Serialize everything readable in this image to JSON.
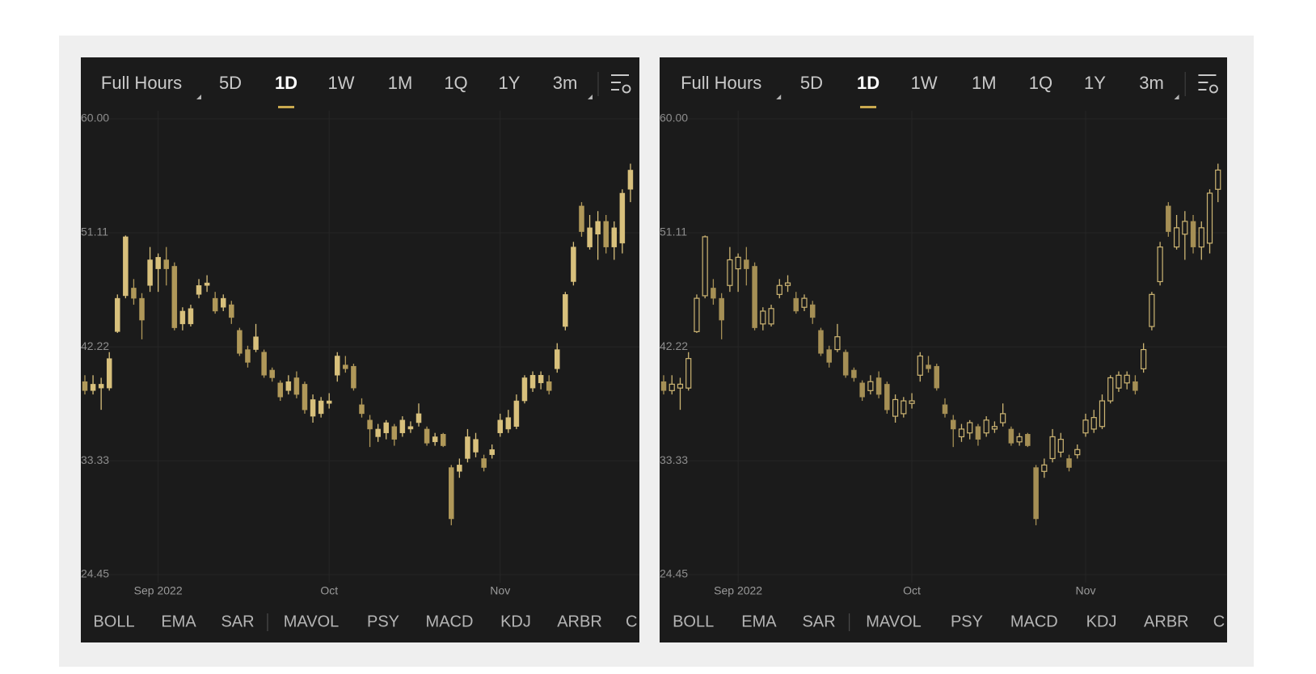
{
  "panels": [
    {
      "tabs": [
        "Full Hours",
        "5D",
        "1D",
        "1W",
        "1M",
        "1Q",
        "1Y",
        "3m"
      ],
      "indicators": [
        "BOLL",
        "EMA",
        "SAR",
        "MAVOL",
        "PSY",
        "MACD",
        "KDJ",
        "ARBR",
        "C"
      ]
    },
    {
      "tabs": [
        "Full Hours",
        "5D",
        "1D",
        "1W",
        "1M",
        "1Q",
        "1Y",
        "3m"
      ],
      "indicators": [
        "BOLL",
        "EMA",
        "SAR",
        "MAVOL",
        "PSY",
        "MACD",
        "KDJ",
        "ARBR",
        "C"
      ]
    }
  ],
  "chart_data": [
    {
      "type": "candlestick",
      "categories": [
        null,
        null,
        null,
        null,
        null,
        null,
        null,
        null,
        null,
        "Sep 2022",
        null,
        null,
        null,
        null,
        null,
        null,
        null,
        null,
        null,
        null,
        null,
        null,
        null,
        null,
        null,
        null,
        null,
        null,
        null,
        null,
        "Oct",
        null,
        null,
        null,
        null,
        null,
        null,
        null,
        null,
        null,
        null,
        null,
        null,
        null,
        null,
        null,
        null,
        null,
        null,
        null,
        null,
        "Nov",
        null,
        null,
        null,
        null,
        null,
        null,
        null,
        null,
        null,
        null,
        null,
        null,
        null,
        null,
        null,
        null
      ],
      "open": [
        39.5,
        38.8,
        39.0,
        39.0,
        43.4,
        46.2,
        46.8,
        46.0,
        47.0,
        48.3,
        49.0,
        48.5,
        44.0,
        44.0,
        46.3,
        47.0,
        46.0,
        45.3,
        45.5,
        43.5,
        42.0,
        42.0,
        41.8,
        40.4,
        39.4,
        38.8,
        39.8,
        39.3,
        36.8,
        37.0,
        37.8,
        40.0,
        40.8,
        40.7,
        37.7,
        36.5,
        35.2,
        35.5,
        36.0,
        35.5,
        35.8,
        36.3,
        35.8,
        34.8,
        35.4,
        32.8,
        32.5,
        33.5,
        34.0,
        33.5,
        33.8,
        35.5,
        35.8,
        36.0,
        38.0,
        39.0,
        39.4,
        39.5,
        40.5,
        43.8,
        47.3,
        53.2,
        50.0,
        51.0,
        52.0,
        50.0,
        50.3,
        54.5
      ],
      "high": [
        40.0,
        40.0,
        39.8,
        41.8,
        46.3,
        50.9,
        47.5,
        46.4,
        50.0,
        49.5,
        50.0,
        48.8,
        45.3,
        45.5,
        47.5,
        47.8,
        46.5,
        46.3,
        45.8,
        43.7,
        42.3,
        44.0,
        42.0,
        40.6,
        39.6,
        40.0,
        40.3,
        39.5,
        38.5,
        38.3,
        38.6,
        41.8,
        41.5,
        40.9,
        38.2,
        36.9,
        36.2,
        36.5,
        36.2,
        36.8,
        36.4,
        37.8,
        36.0,
        35.5,
        35.5,
        33.0,
        33.5,
        35.8,
        35.5,
        33.8,
        34.6,
        37.0,
        37.3,
        38.5,
        40.0,
        40.3,
        40.3,
        40.0,
        42.5,
        46.5,
        50.4,
        53.5,
        52.5,
        52.8,
        52.5,
        52.0,
        54.5,
        56.5
      ],
      "low": [
        38.5,
        38.5,
        37.3,
        38.8,
        43.3,
        46.0,
        45.5,
        42.8,
        46.5,
        46.5,
        47.0,
        43.5,
        43.5,
        43.8,
        46.0,
        46.5,
        44.8,
        45.0,
        44.0,
        41.5,
        40.6,
        41.8,
        39.8,
        39.5,
        38.0,
        38.5,
        38.2,
        37.0,
        36.3,
        36.7,
        37.4,
        39.5,
        40.2,
        38.8,
        36.7,
        34.4,
        34.8,
        35.0,
        34.5,
        35.2,
        35.5,
        36.0,
        34.5,
        34.5,
        34.4,
        28.3,
        32.0,
        33.2,
        33.6,
        32.5,
        33.5,
        35.2,
        35.5,
        35.8,
        37.8,
        38.7,
        38.9,
        38.5,
        40.2,
        43.5,
        47.0,
        50.8,
        49.8,
        49.0,
        49.5,
        49.0,
        49.5,
        53.5
      ],
      "close": [
        38.8,
        39.3,
        39.3,
        41.3,
        46.0,
        50.8,
        46.0,
        44.3,
        49.0,
        49.2,
        48.3,
        43.7,
        45.0,
        45.2,
        47.0,
        47.2,
        45.0,
        46.0,
        44.5,
        41.7,
        41.0,
        43.0,
        40.0,
        39.8,
        38.3,
        39.5,
        38.5,
        37.3,
        38.1,
        38.0,
        38.0,
        41.5,
        40.5,
        39.0,
        37.0,
        35.8,
        35.8,
        36.3,
        35.0,
        36.5,
        36.0,
        37.0,
        34.7,
        35.2,
        34.5,
        28.8,
        33.0,
        35.2,
        35.0,
        32.8,
        34.2,
        36.5,
        36.7,
        38.0,
        39.8,
        40.0,
        40.0,
        38.8,
        42.0,
        46.3,
        50.0,
        51.2,
        51.5,
        52.0,
        50.0,
        51.5,
        54.2,
        56.0
      ],
      "ylim": [
        24.45,
        60
      ],
      "yticks": [
        24.45,
        33.33,
        42.22,
        51.11,
        {
          "value": 60,
          "label": "60.00"
        }
      ],
      "up_color": "#d8c07c",
      "down_color": "#b09859",
      "hollow_up": false,
      "grid": true
    },
    {
      "type": "candlestick",
      "categories": [
        null,
        null,
        null,
        null,
        null,
        null,
        null,
        null,
        null,
        "Sep 2022",
        null,
        null,
        null,
        null,
        null,
        null,
        null,
        null,
        null,
        null,
        null,
        null,
        null,
        null,
        null,
        null,
        null,
        null,
        null,
        null,
        "Oct",
        null,
        null,
        null,
        null,
        null,
        null,
        null,
        null,
        null,
        null,
        null,
        null,
        null,
        null,
        null,
        null,
        null,
        null,
        null,
        null,
        "Nov",
        null,
        null,
        null,
        null,
        null,
        null,
        null,
        null,
        null,
        null,
        null,
        null,
        null,
        null,
        null,
        null
      ],
      "open": [
        39.5,
        38.8,
        39.0,
        39.0,
        43.4,
        46.2,
        46.8,
        46.0,
        47.0,
        48.3,
        49.0,
        48.5,
        44.0,
        44.0,
        46.3,
        47.0,
        46.0,
        45.3,
        45.5,
        43.5,
        42.0,
        42.0,
        41.8,
        40.4,
        39.4,
        38.8,
        39.8,
        39.3,
        36.8,
        37.0,
        37.8,
        40.0,
        40.8,
        40.7,
        37.7,
        36.5,
        35.2,
        35.5,
        36.0,
        35.5,
        35.8,
        36.3,
        35.8,
        34.8,
        35.4,
        32.8,
        32.5,
        33.5,
        34.0,
        33.5,
        33.8,
        35.5,
        35.8,
        36.0,
        38.0,
        39.0,
        39.4,
        39.5,
        40.5,
        43.8,
        47.3,
        53.2,
        50.0,
        51.0,
        52.0,
        50.0,
        50.3,
        54.5
      ],
      "high": [
        40.0,
        40.0,
        39.8,
        41.8,
        46.3,
        50.9,
        47.5,
        46.4,
        50.0,
        49.5,
        50.0,
        48.8,
        45.3,
        45.5,
        47.5,
        47.8,
        46.5,
        46.3,
        45.8,
        43.7,
        42.3,
        44.0,
        42.0,
        40.6,
        39.6,
        40.0,
        40.3,
        39.5,
        38.5,
        38.3,
        38.6,
        41.8,
        41.5,
        40.9,
        38.2,
        36.9,
        36.2,
        36.5,
        36.2,
        36.8,
        36.4,
        37.8,
        36.0,
        35.5,
        35.5,
        33.0,
        33.5,
        35.8,
        35.5,
        33.8,
        34.6,
        37.0,
        37.3,
        38.5,
        40.0,
        40.3,
        40.3,
        40.0,
        42.5,
        46.5,
        50.4,
        53.5,
        52.5,
        52.8,
        52.5,
        52.0,
        54.5,
        56.5
      ],
      "low": [
        38.5,
        38.5,
        37.3,
        38.8,
        43.3,
        46.0,
        45.5,
        42.8,
        46.5,
        46.5,
        47.0,
        43.5,
        43.5,
        43.8,
        46.0,
        46.5,
        44.8,
        45.0,
        44.0,
        41.5,
        40.6,
        41.8,
        39.8,
        39.5,
        38.0,
        38.5,
        38.2,
        37.0,
        36.3,
        36.7,
        37.4,
        39.5,
        40.2,
        38.8,
        36.7,
        34.4,
        34.8,
        35.0,
        34.5,
        35.2,
        35.5,
        36.0,
        34.5,
        34.5,
        34.4,
        28.3,
        32.0,
        33.2,
        33.6,
        32.5,
        33.5,
        35.2,
        35.5,
        35.8,
        37.8,
        38.7,
        38.9,
        38.5,
        40.2,
        43.5,
        47.0,
        50.8,
        49.8,
        49.0,
        49.5,
        49.0,
        49.5,
        53.5
      ],
      "close": [
        38.8,
        39.3,
        39.3,
        41.3,
        46.0,
        50.8,
        46.0,
        44.3,
        49.0,
        49.2,
        48.3,
        43.7,
        45.0,
        45.2,
        47.0,
        47.2,
        45.0,
        46.0,
        44.5,
        41.7,
        41.0,
        43.0,
        40.0,
        39.8,
        38.3,
        39.5,
        38.5,
        37.3,
        38.1,
        38.0,
        38.0,
        41.5,
        40.5,
        39.0,
        37.0,
        35.8,
        35.8,
        36.3,
        35.0,
        36.5,
        36.0,
        37.0,
        34.7,
        35.2,
        34.5,
        28.8,
        33.0,
        35.2,
        35.0,
        32.8,
        34.2,
        36.5,
        36.7,
        38.0,
        39.8,
        40.0,
        40.0,
        38.8,
        42.0,
        46.3,
        50.0,
        51.2,
        51.5,
        52.0,
        50.0,
        51.5,
        54.2,
        56.0
      ],
      "ylim": [
        24.45,
        60
      ],
      "yticks": [
        24.45,
        33.33,
        42.22,
        51.11,
        {
          "value": 60,
          "label": "60.00"
        }
      ],
      "up_color": "#cdb573",
      "down_color": "#a58f55",
      "hollow_up": true,
      "grid": true
    }
  ]
}
